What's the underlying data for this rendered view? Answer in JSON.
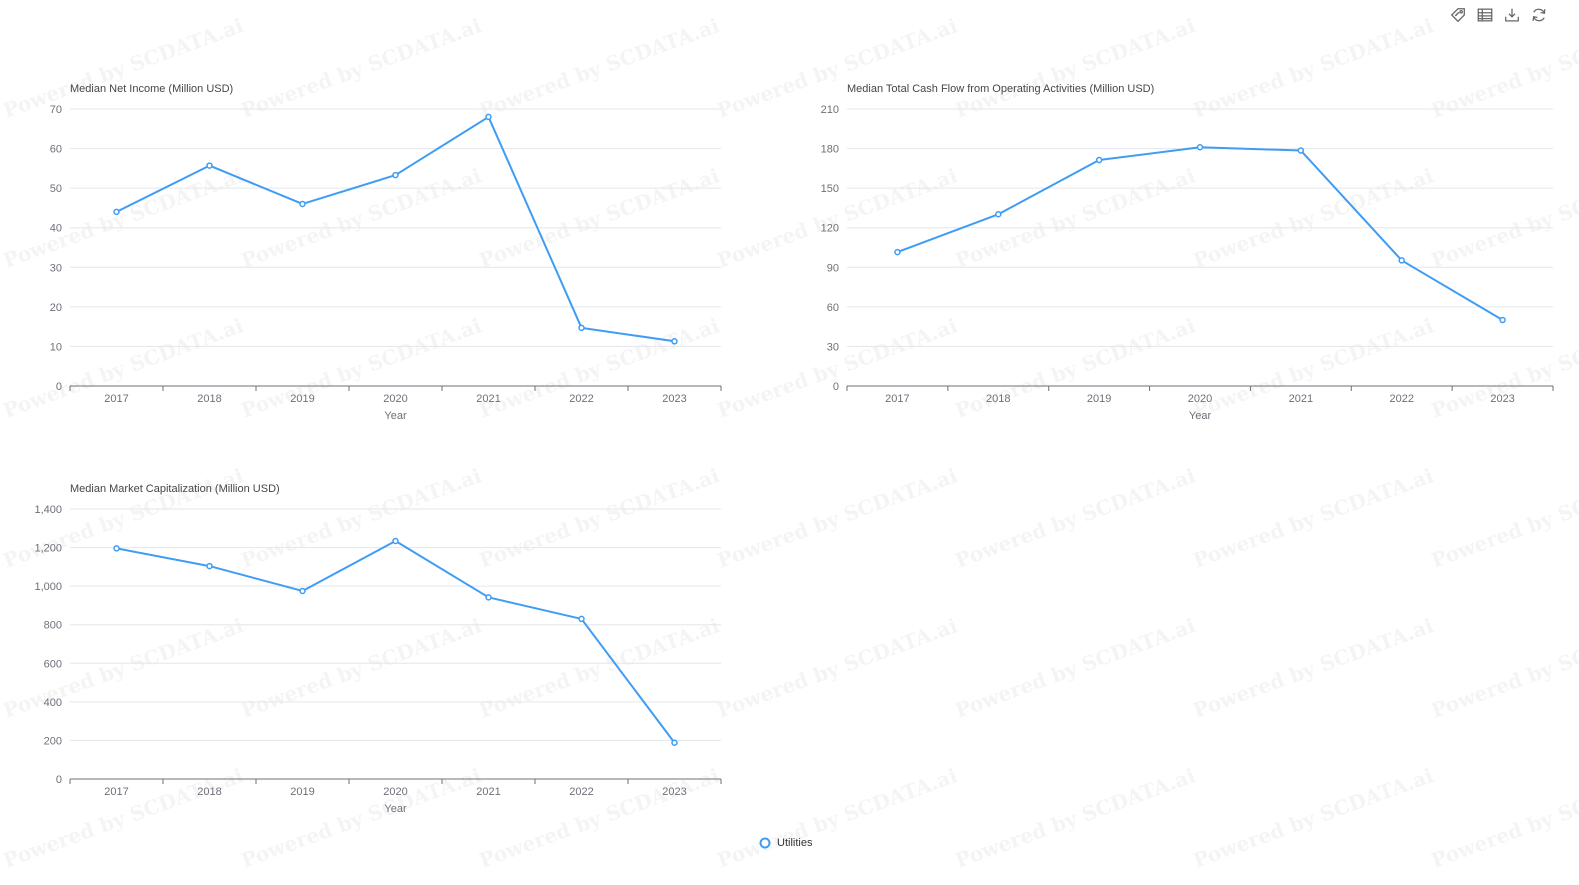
{
  "watermark": "Powered by SCDATA.ai",
  "toolbox": [
    {
      "name": "tag-icon"
    },
    {
      "name": "data-view-icon"
    },
    {
      "name": "download-icon"
    },
    {
      "name": "refresh-icon"
    }
  ],
  "legend": {
    "label": "Utilities",
    "color": "#3f9cf5"
  },
  "colors": {
    "series": "#3f9cf5",
    "grid": "#e3e6ee",
    "axis": "#6e7079",
    "text": "#6e7079",
    "title": "#464646"
  },
  "chart_data": [
    {
      "type": "line",
      "title": "Median Net Income (Million USD)",
      "xlabel": "Year",
      "ylabel": "",
      "categories": [
        "2017",
        "2018",
        "2019",
        "2020",
        "2021",
        "2022",
        "2023"
      ],
      "yticks": [
        "0",
        "10",
        "20",
        "30",
        "40",
        "50",
        "60",
        "70"
      ],
      "ylim": [
        0,
        70
      ],
      "series": [
        {
          "name": "Utilities",
          "values": [
            44,
            55.7,
            46,
            53.3,
            68,
            14.7,
            11.3
          ]
        }
      ]
    },
    {
      "type": "line",
      "title": "Median Total Cash Flow from Operating Activities (Million USD)",
      "xlabel": "Year",
      "ylabel": "",
      "categories": [
        "2017",
        "2018",
        "2019",
        "2020",
        "2021",
        "2022",
        "2023"
      ],
      "yticks": [
        "0",
        "30",
        "60",
        "90",
        "120",
        "150",
        "180",
        "210"
      ],
      "ylim": [
        0,
        210
      ],
      "series": [
        {
          "name": "Utilities",
          "values": [
            101.5,
            130.2,
            171.3,
            181,
            178.5,
            95.2,
            50
          ]
        }
      ]
    },
    {
      "type": "line",
      "title": "Median Market Capitalization (Million USD)",
      "xlabel": "Year",
      "ylabel": "",
      "categories": [
        "2017",
        "2018",
        "2019",
        "2020",
        "2021",
        "2022",
        "2023"
      ],
      "yticks": [
        "0",
        "200",
        "400",
        "600",
        "800",
        "1,000",
        "1,200",
        "1,400"
      ],
      "ylim": [
        0,
        1400
      ],
      "series": [
        {
          "name": "Utilities",
          "values": [
            1196,
            1104,
            975,
            1234,
            942,
            830,
            188
          ]
        }
      ]
    }
  ]
}
